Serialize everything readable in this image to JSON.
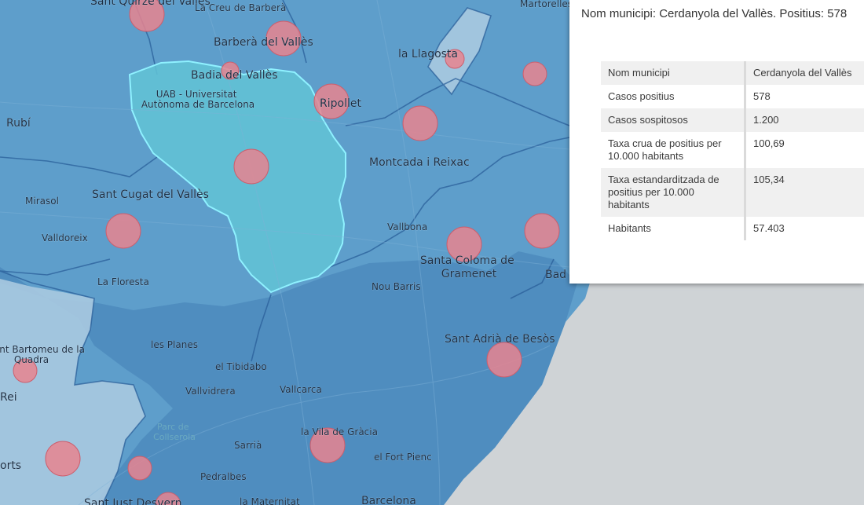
{
  "map": {
    "labels": {
      "sant_quirze": "Sant Quirze del Vallès",
      "creu_barbera": "La Creu de Barberà",
      "martorelles": "Martorelles",
      "barbera": "Barberà del Vallès",
      "llagosta": "la Llagosta",
      "badia": "Badia del Vallès",
      "uab": "UAB - Universitat Autònoma de Barcelona",
      "ripollet": "Ripollet",
      "rubi": "Rubí",
      "montcada": "Montcada i Reixac",
      "sant_cugat": "Sant Cugat del Vallès",
      "mirasol": "Mirasol",
      "valldoreix": "Valldoreix",
      "vallbona": "Vallbona",
      "santa_coloma": "Santa Coloma de Gramenet",
      "badalona": "Bad",
      "la_floresta": "La Floresta",
      "nou_barris": "Nou Barris",
      "sant_bartomeu": "Sant Bartomeu de la Quadra",
      "les_planes": "les Planes",
      "sant_adria": "Sant Adrià de Besòs",
      "tibidabo": "el Tibidabo",
      "rei": "Rei",
      "vallvidrera": "Vallvidrera",
      "vallcarca": "Vallcarca",
      "parc_collserola": "Parc de Collserola",
      "vila_gracia": "la Vila de Gràcia",
      "sarria": "Sarrià",
      "fort_pienc": "el Fort Pienc",
      "orts": "orts",
      "pedralbes": "Pedralbes",
      "sant_just": "Sant Just Desvern",
      "maternitat": "la Maternitat",
      "barcelona": "Barcelona"
    },
    "colors": {
      "region_fill": "#5a9ac7",
      "region_dark": "#4b86b8",
      "light_region": "#a9c9e0",
      "selected_fill": "#61c3d6",
      "selected_outline": "#8ff1ff",
      "sea": "#cfd3d6",
      "boundary": "#2a5f9a",
      "circle_fill": "#e8848f",
      "circle_stroke": "#cc5e6d"
    }
  },
  "popup": {
    "title": "Nom municipi: Cerdanyola del Vallès. Positius: 578",
    "rows": [
      {
        "key": "Nom municipi",
        "value": "Cerdanyola del Vallès"
      },
      {
        "key": "Casos positius",
        "value": "578"
      },
      {
        "key": "Casos sospitosos",
        "value": "1.200"
      },
      {
        "key": "Taxa crua de positius per 10.000 habitants",
        "value": "100,69"
      },
      {
        "key": "Taxa estandarditzada de positius per 10.000 habitants",
        "value": "105,34"
      },
      {
        "key": "Habitants",
        "value": "57.403"
      }
    ]
  }
}
